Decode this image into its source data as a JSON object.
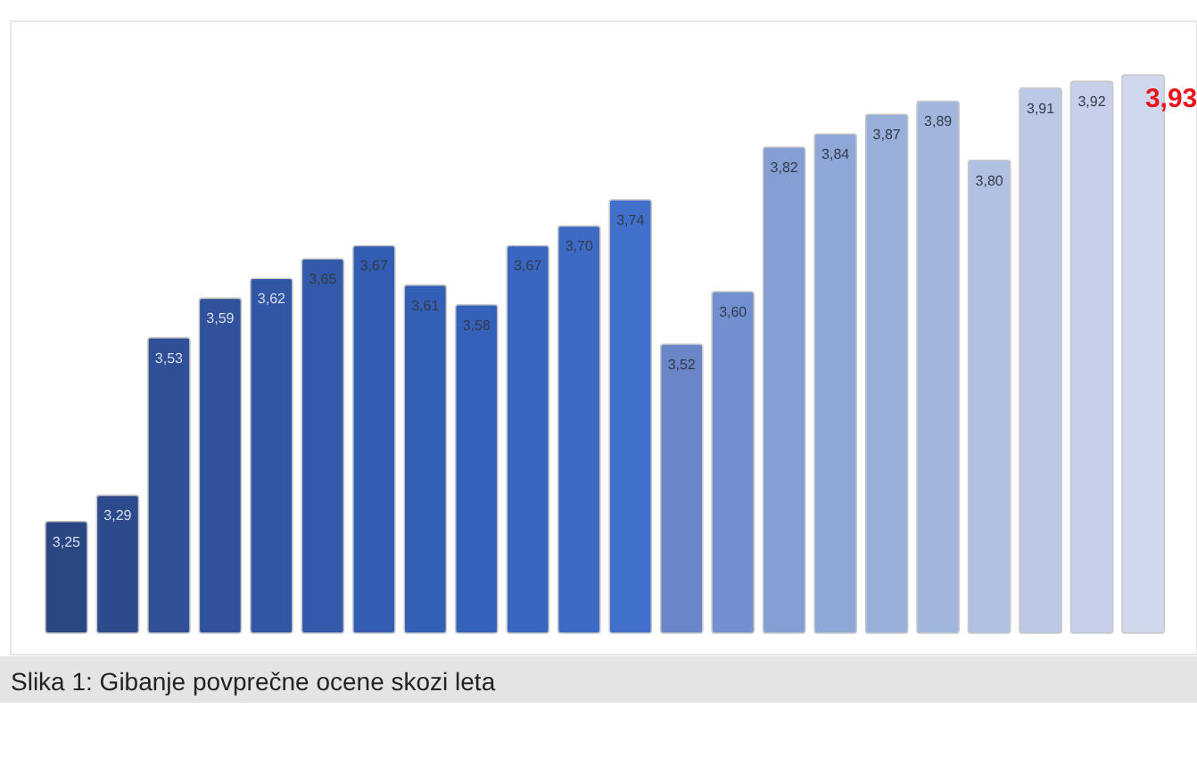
{
  "chart_data": {
    "type": "bar",
    "categories": [
      null,
      null,
      null,
      null,
      null,
      null,
      null,
      null,
      null,
      null,
      null,
      null,
      null,
      null,
      null,
      null,
      null,
      null,
      null,
      null,
      null,
      null
    ],
    "values": [
      3.25,
      3.29,
      3.53,
      3.59,
      3.62,
      3.65,
      3.67,
      3.61,
      3.58,
      3.67,
      3.7,
      3.74,
      3.52,
      3.6,
      3.82,
      3.84,
      3.87,
      3.89,
      3.8,
      3.91,
      3.92,
      3.93
    ],
    "value_labels": [
      "3,25",
      "3,29",
      "3,53",
      "3,59",
      "3,62",
      "3,65",
      "3,67",
      "3,61",
      "3,58",
      "3,67",
      "3,70",
      "3,74",
      "3,52",
      "3,60",
      "3,82",
      "3,84",
      "3,87",
      "3,89",
      "3,80",
      "3,91",
      "3,92",
      "3,93"
    ],
    "colors": [
      "#2a4683",
      "#2c4a8c",
      "#2f4f96",
      "#30529d",
      "#3156a4",
      "#3259aa",
      "#335db2",
      "#345fb6",
      "#3561ba",
      "#3966c0",
      "#3c6ac5",
      "#4070cb",
      "#6a86c9",
      "#7290cf",
      "#849fd4",
      "#8ea7d7",
      "#98afda",
      "#a2b6dd",
      "#b1c1e3",
      "#bcc9e6",
      "#c6d0ea",
      "#d0d8ee"
    ],
    "ylim": [
      3.08,
      3.93
    ],
    "annotations": [
      "Slika 1: Gibanje povprečne ocene skozi leta"
    ]
  }
}
